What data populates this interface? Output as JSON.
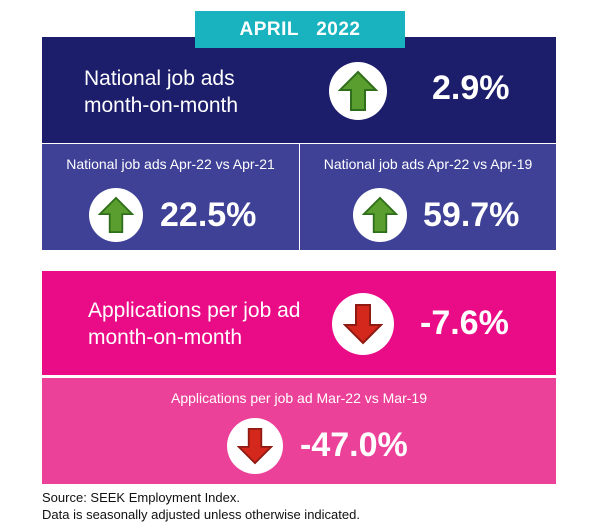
{
  "header": {
    "title": "APRIL  2022"
  },
  "national_mom": {
    "label_line1": "National job ads",
    "label_line2": "month-on-month",
    "value": "2.9%",
    "direction_icon": "arrow-up-icon",
    "arrow_color": "#5a9e2f"
  },
  "national_apr21": {
    "label": "National job ads Apr-22 vs Apr-21",
    "value": "22.5%",
    "direction_icon": "arrow-up-icon"
  },
  "national_apr19": {
    "label": "National job ads Apr-22 vs Apr-19",
    "value": "59.7%",
    "direction_icon": "arrow-up-icon"
  },
  "applications_mom": {
    "label_line1": "Applications per job ad",
    "label_line2": "month-on-month",
    "value": "-7.6%",
    "direction_icon": "arrow-down-icon",
    "arrow_color": "#d5281c"
  },
  "applications_mar19": {
    "label": "Applications per job ad Mar-22 vs Mar-19",
    "value": "-47.0%",
    "direction_icon": "arrow-down-icon"
  },
  "footer": {
    "source": "Source: SEEK Employment Index.",
    "note": "Data is seasonally adjusted unless otherwise indicated."
  },
  "colors": {
    "teal": "#18b3be",
    "navy": "#1c1d6b",
    "blue_mid": "#3f4197",
    "magenta": "#ea0b87",
    "pink": "#ec4199"
  }
}
